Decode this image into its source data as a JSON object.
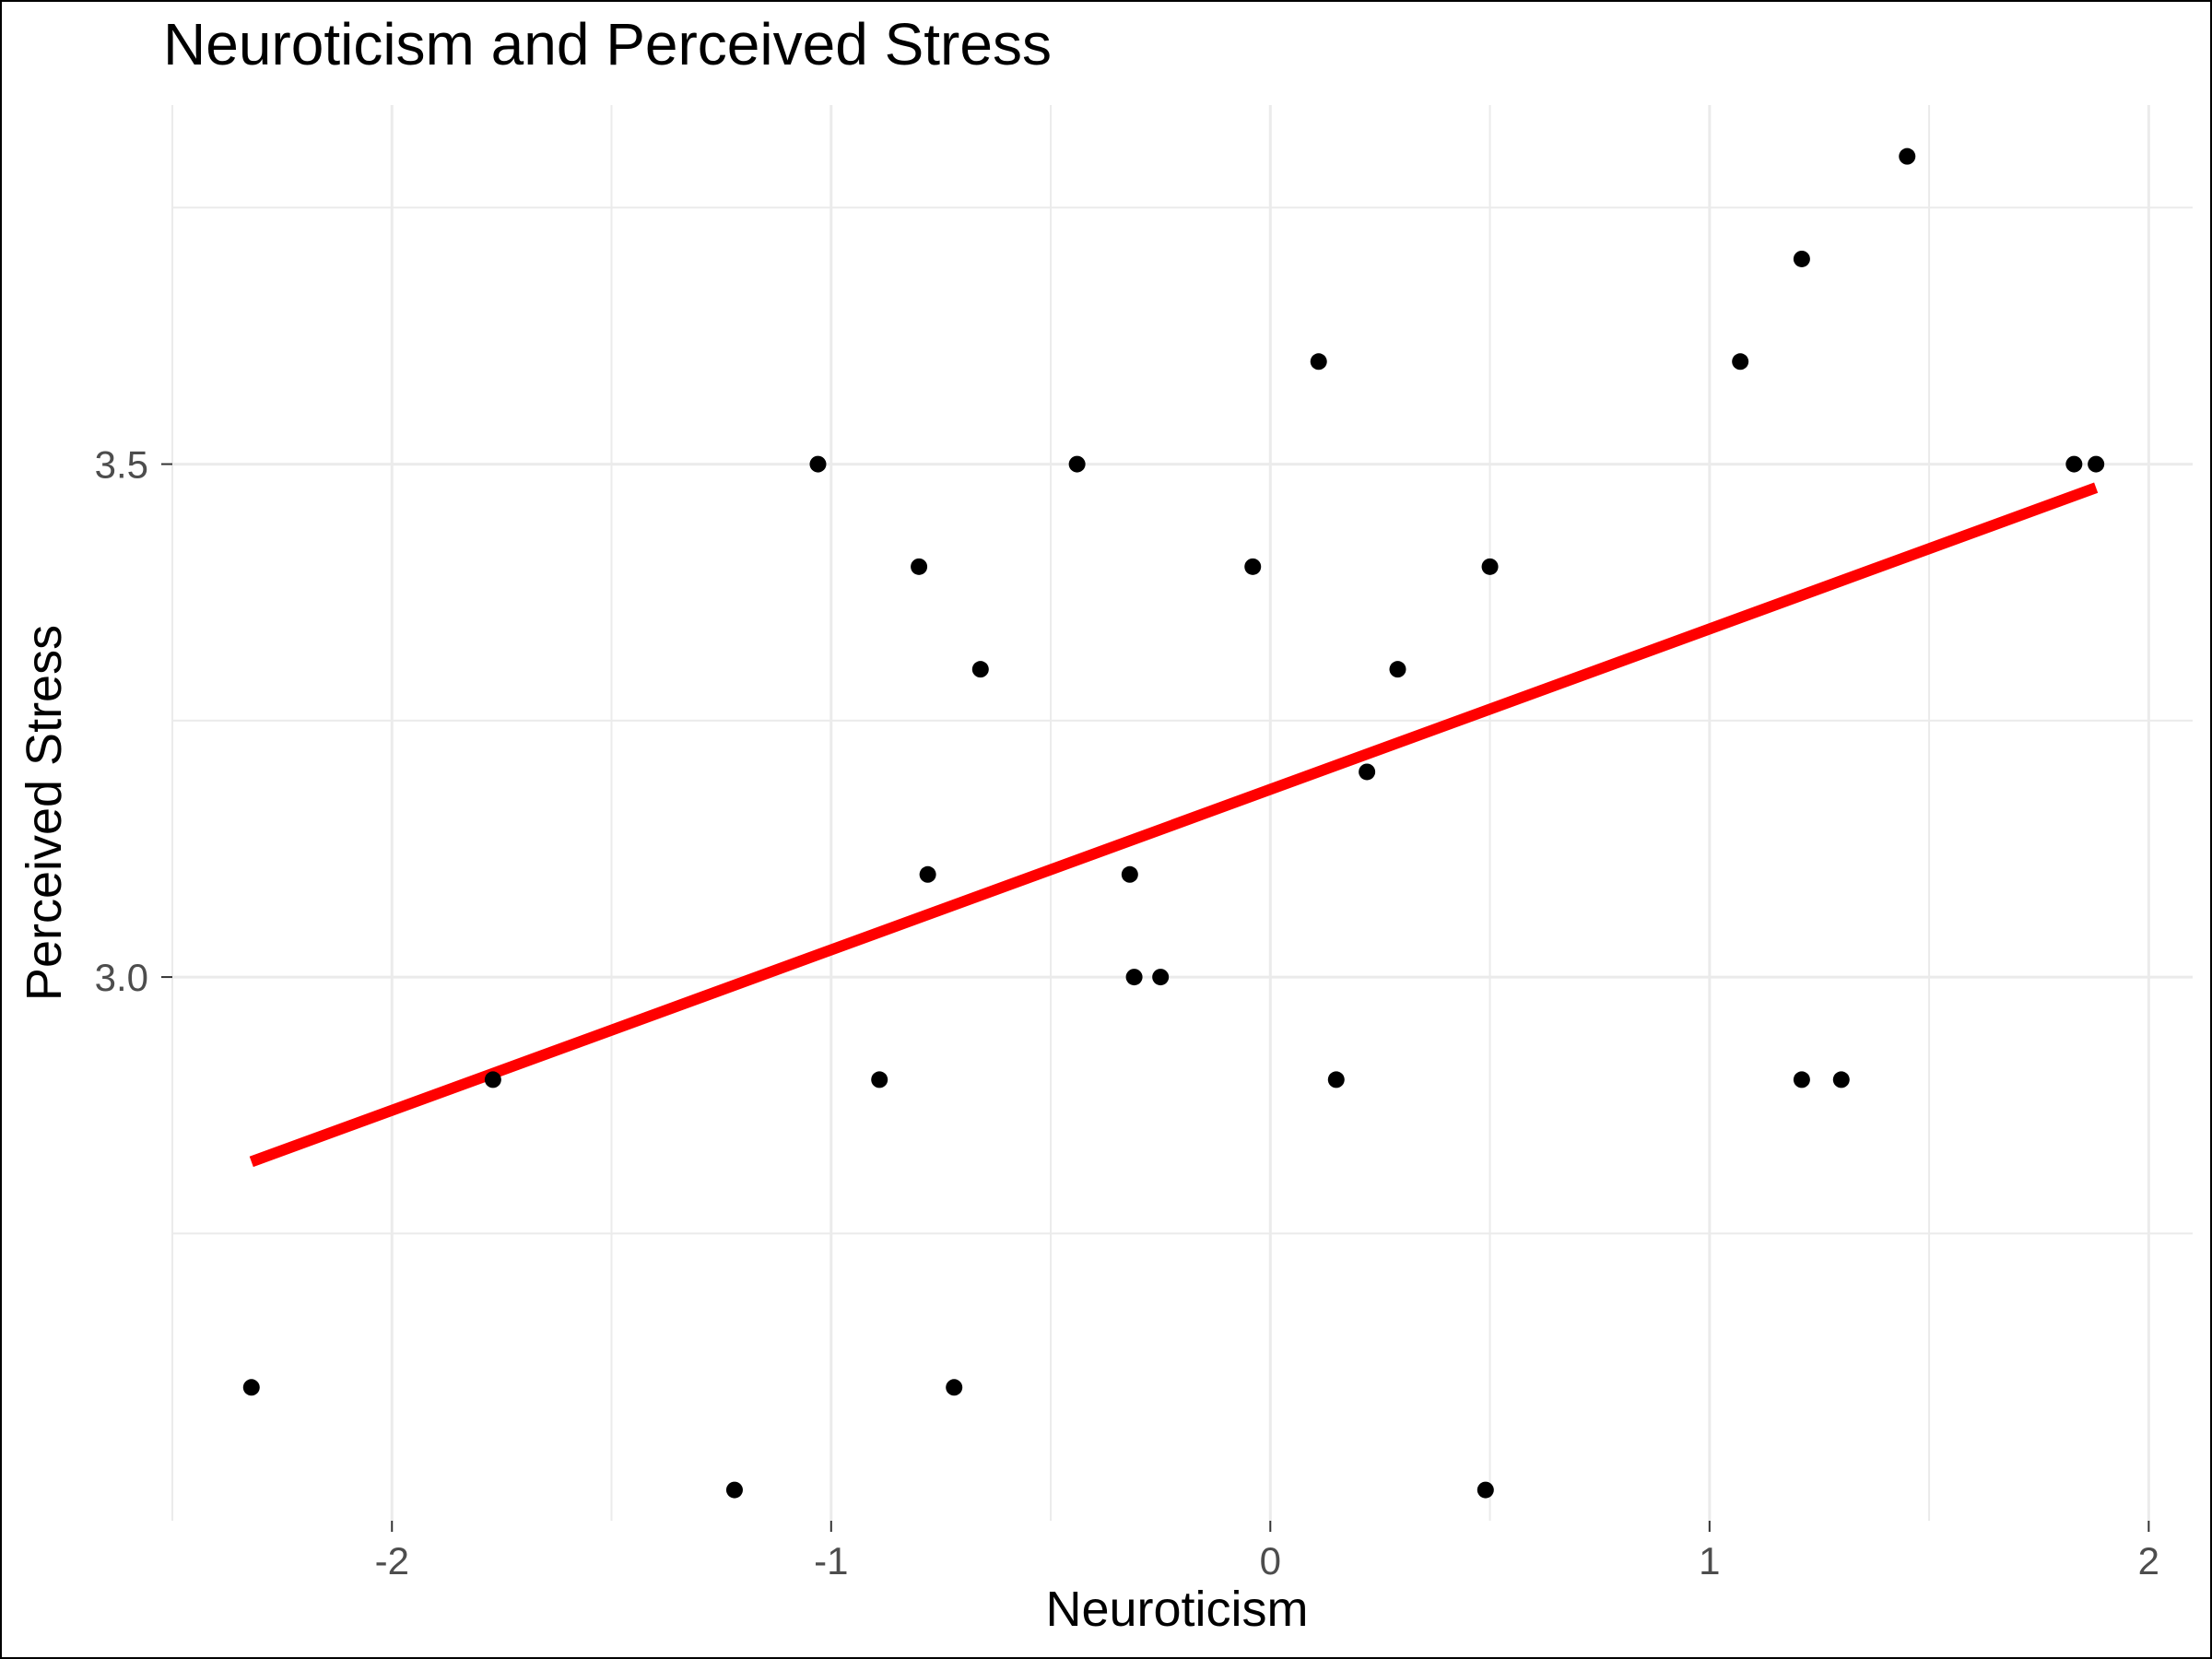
{
  "chart_data": {
    "type": "scatter",
    "title": "Neuroticism and Perceived Stress",
    "xlabel": "Neuroticism",
    "ylabel": "Perceived Stress",
    "xlim": [
      -2.5,
      2.1
    ],
    "ylim": [
      2.47,
      3.85
    ],
    "x_ticks": [
      -2,
      -1,
      0,
      1,
      2
    ],
    "x_tick_labels": [
      "-2",
      "-1",
      "0",
      "1",
      "2"
    ],
    "y_ticks": [
      3.0,
      3.5
    ],
    "y_tick_labels": [
      "3.0",
      "3.5"
    ],
    "grid": true,
    "legend": "none",
    "colors": {
      "points": "#000000",
      "fit_line": "#ff0000",
      "grid": "#ebebeb"
    },
    "points": [
      {
        "x": -2.32,
        "y": 2.6
      },
      {
        "x": -1.77,
        "y": 2.9
      },
      {
        "x": -1.22,
        "y": 2.5
      },
      {
        "x": -1.03,
        "y": 3.5
      },
      {
        "x": -0.89,
        "y": 2.9
      },
      {
        "x": -0.8,
        "y": 3.4
      },
      {
        "x": -0.78,
        "y": 3.1
      },
      {
        "x": -0.72,
        "y": 2.6
      },
      {
        "x": -0.66,
        "y": 3.3
      },
      {
        "x": -0.44,
        "y": 3.5
      },
      {
        "x": -0.32,
        "y": 3.1
      },
      {
        "x": -0.31,
        "y": 3.0
      },
      {
        "x": -0.25,
        "y": 3.0
      },
      {
        "x": -0.04,
        "y": 3.4
      },
      {
        "x": 0.11,
        "y": 3.6
      },
      {
        "x": 0.15,
        "y": 2.9
      },
      {
        "x": 0.22,
        "y": 3.2
      },
      {
        "x": 0.29,
        "y": 3.3
      },
      {
        "x": 0.49,
        "y": 2.5
      },
      {
        "x": 0.5,
        "y": 3.4
      },
      {
        "x": 1.07,
        "y": 3.6
      },
      {
        "x": 1.21,
        "y": 3.7
      },
      {
        "x": 1.21,
        "y": 2.9
      },
      {
        "x": 1.3,
        "y": 2.9
      },
      {
        "x": 1.45,
        "y": 3.8
      },
      {
        "x": 1.83,
        "y": 3.5
      },
      {
        "x": 1.88,
        "y": 3.5
      }
    ],
    "fit_line": {
      "x": [
        -2.32,
        1.88
      ],
      "y": [
        2.82,
        3.477
      ]
    }
  }
}
